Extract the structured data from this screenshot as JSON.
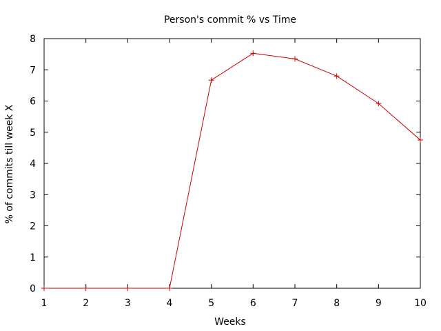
{
  "chart_data": {
    "type": "line",
    "title": "Person's commit % vs Time",
    "xlabel": "Weeks",
    "ylabel": "% of commits till week X",
    "xlim": [
      1,
      10
    ],
    "ylim": [
      0,
      8
    ],
    "x_ticks": [
      1,
      2,
      3,
      4,
      5,
      6,
      7,
      8,
      9,
      10
    ],
    "y_ticks": [
      0,
      1,
      2,
      3,
      4,
      5,
      6,
      7,
      8
    ],
    "grid": false,
    "legend": "none",
    "series": [
      {
        "color": "#cc0000",
        "marker": "plus",
        "x": [
          1,
          2,
          3,
          4,
          5,
          6,
          7,
          8,
          9,
          10
        ],
        "y": [
          0,
          0,
          0,
          0,
          6.67,
          7.53,
          7.35,
          6.8,
          5.92,
          4.75
        ]
      }
    ]
  }
}
